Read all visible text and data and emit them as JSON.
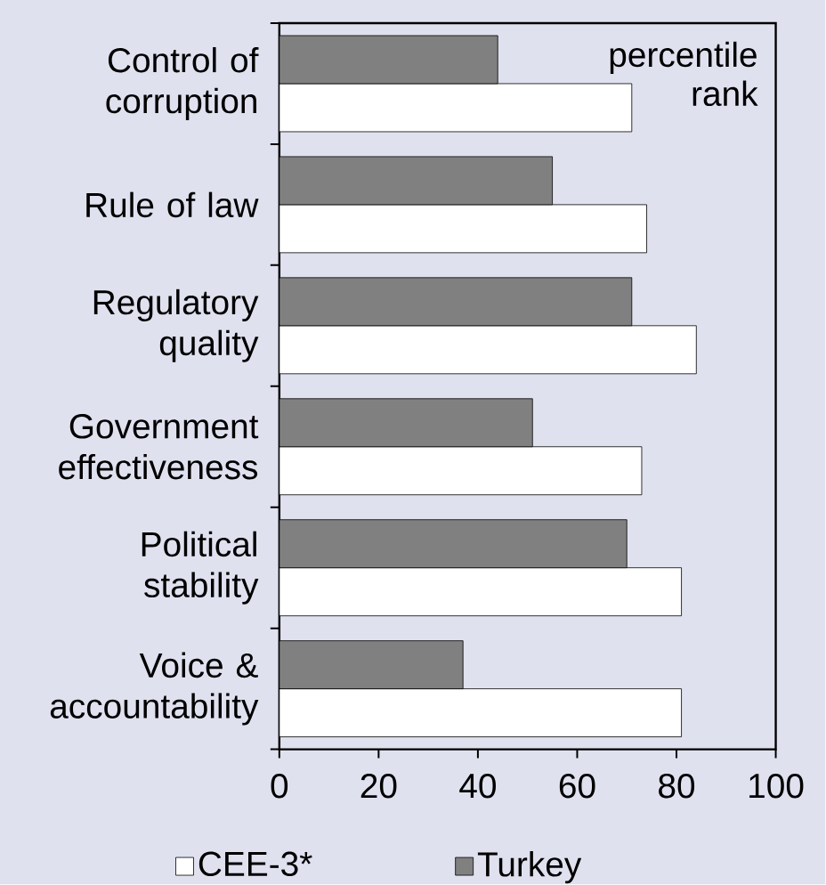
{
  "chart_data": {
    "type": "bar",
    "orientation": "horizontal",
    "categories": [
      "Control of corruption",
      "Rule of law",
      "Regulatory quality",
      "Government effectiveness",
      "Political stability",
      "Voice & accountability"
    ],
    "series": [
      {
        "name": "CEE-3*",
        "color": "#ffffff",
        "values": [
          71,
          74,
          84,
          73,
          81,
          81
        ]
      },
      {
        "name": "Turkey",
        "color": "#808080",
        "values": [
          44,
          55,
          71,
          51,
          70,
          37
        ]
      }
    ],
    "xlim": [
      0,
      100
    ],
    "xticks": [
      0,
      20,
      40,
      60,
      80,
      100
    ],
    "annotations": [
      "percentile rank"
    ],
    "legend": "bottom",
    "grid": false
  }
}
